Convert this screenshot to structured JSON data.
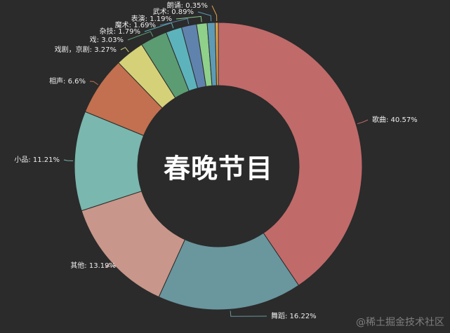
{
  "chart_data": {
    "type": "pie",
    "donut": true,
    "title": "春晚节目",
    "label_format": "{name}: {value}%",
    "slices": [
      {
        "name": "歌曲",
        "value": 40.57,
        "color": "#c06a6a"
      },
      {
        "name": "舞蹈",
        "value": 16.22,
        "color": "#6a969e"
      },
      {
        "name": "其他",
        "value": 13.19,
        "color": "#c8968a"
      },
      {
        "name": "小品",
        "value": 11.21,
        "color": "#7ab7ae"
      },
      {
        "name": "相声",
        "value": 6.6,
        "color": "#c2704f"
      },
      {
        "name": "戏剧，京剧",
        "value": 3.27,
        "color": "#d4d178"
      },
      {
        "name": "戏",
        "value": 3.03,
        "color": "#5c9c72"
      },
      {
        "name": "杂技",
        "value": 1.79,
        "color": "#5db3bc"
      },
      {
        "name": "魔术",
        "value": 1.69,
        "color": "#5f83ad"
      },
      {
        "name": "表演",
        "value": 1.19,
        "color": "#8fd08a"
      },
      {
        "name": "武术",
        "value": 0.89,
        "color": "#5e9bb5"
      },
      {
        "name": "朗诵",
        "value": 0.35,
        "color": "#e0a24c"
      }
    ],
    "legend": "none"
  },
  "watermark": "@稀土掘金技术社区"
}
